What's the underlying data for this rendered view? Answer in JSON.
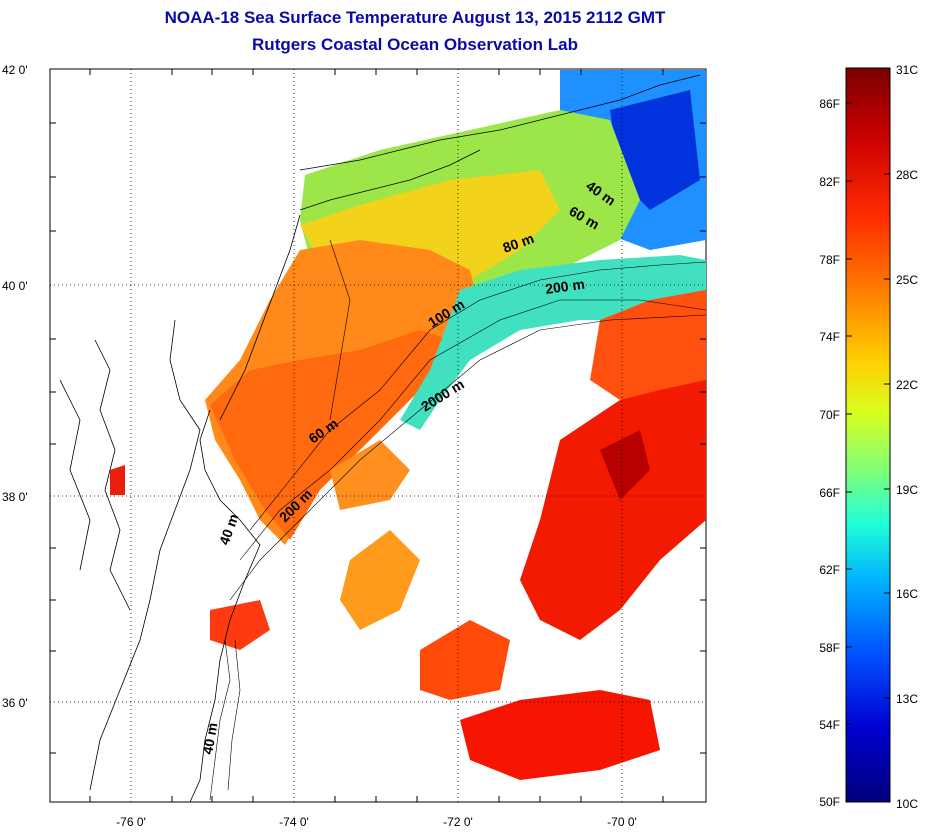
{
  "header": {
    "title_line1": "NOAA-18 Sea Surface Temperature August 13, 2015 2112 GMT",
    "title_line2": "Rutgers Coastal Ocean Observation Lab"
  },
  "map": {
    "lat_labels": [
      "42 0'",
      "40 0'",
      "38 0'",
      "36 0'"
    ],
    "lon_labels": [
      "-76 0'",
      "-74 0'",
      "-72 0'",
      "-70 0'"
    ],
    "contour_labels": [
      "40 m",
      "60 m",
      "80 m",
      "200 m",
      "100 m",
      "2000 m",
      "60 m",
      "200 m",
      "40 m",
      "40 m"
    ]
  },
  "colorbar": {
    "fahrenheit_labels": [
      "86F",
      "82F",
      "78F",
      "74F",
      "70F",
      "66F",
      "62F",
      "58F",
      "54F",
      "50F"
    ],
    "celsius_labels": [
      "31C",
      "28C",
      "25C",
      "22C",
      "19C",
      "16C",
      "13C",
      "10C"
    ],
    "colors": [
      "#7a0000",
      "#c80000",
      "#ff2a00",
      "#ff7a00",
      "#ffd000",
      "#d8ff20",
      "#7dff7a",
      "#20ffd8",
      "#00b0ff",
      "#0050ff",
      "#0000d0",
      "#00007a"
    ]
  }
}
